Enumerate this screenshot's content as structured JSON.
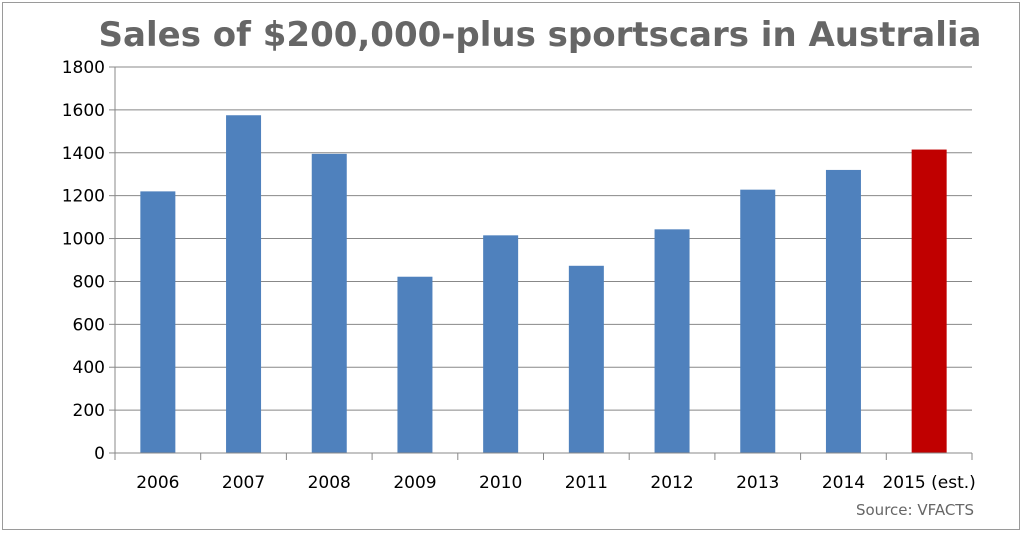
{
  "chart_data": {
    "type": "bar",
    "title": "Sales of $200,000-plus sportscars in Australia",
    "source": "Source: VFACTS",
    "categories": [
      "2006",
      "2007",
      "2008",
      "2009",
      "2010",
      "2011",
      "2012",
      "2013",
      "2014",
      "2015 (est.)"
    ],
    "values": [
      1220,
      1575,
      1395,
      822,
      1015,
      873,
      1043,
      1228,
      1320,
      1415
    ],
    "colors": [
      "#4f81bd",
      "#4f81bd",
      "#4f81bd",
      "#4f81bd",
      "#4f81bd",
      "#4f81bd",
      "#4f81bd",
      "#4f81bd",
      "#4f81bd",
      "#c00000"
    ],
    "xlabel": "",
    "ylabel": "",
    "ylim": [
      0,
      1800
    ],
    "yticks": [
      "0",
      "200",
      "400",
      "600",
      "800",
      "1000",
      "1200",
      "1400",
      "1600",
      "1800"
    ],
    "grid": true,
    "legend": "none"
  }
}
